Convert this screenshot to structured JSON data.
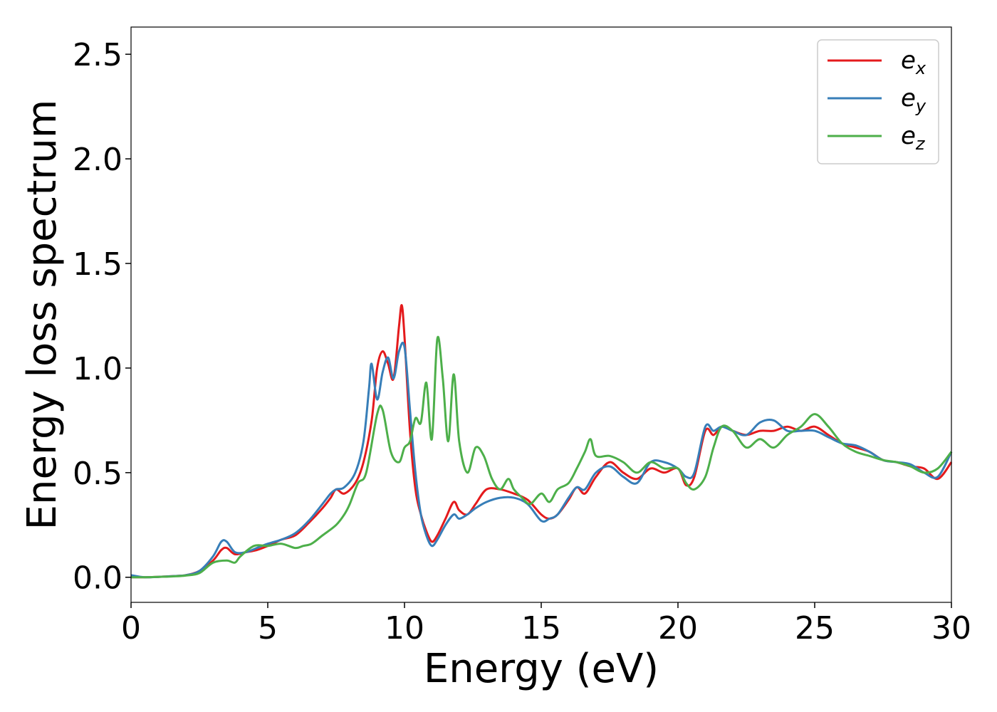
{
  "chart_data": {
    "type": "line",
    "xlabel": "Energy (eV)",
    "ylabel": "Energy loss spectrum",
    "xlim": [
      0,
      30
    ],
    "ylim": [
      -0.12,
      2.63
    ],
    "xticks": [
      0,
      5,
      10,
      15,
      20,
      25,
      30
    ],
    "xtick_labels": [
      "0",
      "5",
      "10",
      "15",
      "20",
      "25",
      "30"
    ],
    "yticks": [
      0.0,
      0.5,
      1.0,
      1.5,
      2.0,
      2.5
    ],
    "ytick_labels": [
      "0.0",
      "0.5",
      "1.0",
      "1.5",
      "2.0",
      "2.5"
    ],
    "grid": false,
    "legend_position": "top-right",
    "series": [
      {
        "name": "e_x",
        "label_base": "e",
        "label_sub": "x",
        "color": "#e41a1c",
        "x": [
          0,
          0.5,
          1,
          1.5,
          2,
          2.5,
          3,
          3.3,
          3.5,
          3.8,
          4.2,
          4.6,
          5,
          5.5,
          6,
          6.5,
          7,
          7.3,
          7.5,
          7.8,
          8.2,
          8.5,
          8.8,
          9,
          9.2,
          9.4,
          9.6,
          9.8,
          9.9,
          10,
          10.2,
          10.4,
          10.6,
          10.8,
          11,
          11.2,
          11.5,
          11.8,
          12,
          12.3,
          12.6,
          13,
          13.5,
          14,
          14.5,
          15,
          15.3,
          15.6,
          16,
          16.3,
          16.6,
          17,
          17.5,
          18,
          18.5,
          19,
          19.5,
          20,
          20.3,
          20.6,
          21,
          21.3,
          21.6,
          22,
          22.5,
          23,
          23.5,
          24,
          24.5,
          25,
          25.5,
          26,
          26.5,
          27,
          27.5,
          28,
          28.5,
          29,
          29.5,
          30
        ],
        "y": [
          0,
          0,
          0.002,
          0.005,
          0.01,
          0.03,
          0.08,
          0.13,
          0.14,
          0.11,
          0.12,
          0.13,
          0.15,
          0.18,
          0.2,
          0.26,
          0.33,
          0.38,
          0.42,
          0.4,
          0.45,
          0.55,
          0.75,
          1.0,
          1.08,
          1.02,
          0.95,
          1.2,
          1.3,
          1.15,
          0.7,
          0.42,
          0.3,
          0.22,
          0.17,
          0.2,
          0.28,
          0.36,
          0.32,
          0.3,
          0.35,
          0.42,
          0.42,
          0.4,
          0.37,
          0.3,
          0.28,
          0.3,
          0.37,
          0.43,
          0.4,
          0.48,
          0.55,
          0.5,
          0.47,
          0.52,
          0.5,
          0.52,
          0.44,
          0.48,
          0.7,
          0.68,
          0.72,
          0.7,
          0.68,
          0.7,
          0.7,
          0.72,
          0.7,
          0.72,
          0.68,
          0.64,
          0.62,
          0.6,
          0.56,
          0.55,
          0.53,
          0.52,
          0.47,
          0.55
        ]
      },
      {
        "name": "e_y",
        "label_base": "e",
        "label_sub": "y",
        "color": "#377eb8",
        "x": [
          0,
          0.5,
          1,
          1.5,
          2,
          2.5,
          3,
          3.3,
          3.5,
          3.8,
          4.2,
          4.6,
          5,
          5.5,
          6,
          6.5,
          7,
          7.3,
          7.5,
          7.8,
          8.2,
          8.5,
          8.7,
          8.8,
          9,
          9.2,
          9.4,
          9.6,
          9.8,
          10,
          10.2,
          10.4,
          10.6,
          10.8,
          11,
          11.2,
          11.5,
          11.8,
          12,
          12.3,
          12.6,
          13,
          13.5,
          14,
          14.5,
          15,
          15.3,
          15.6,
          16,
          16.3,
          16.6,
          17,
          17.5,
          18,
          18.5,
          19,
          19.5,
          20,
          20.3,
          20.6,
          21,
          21.3,
          21.6,
          22,
          22.5,
          23,
          23.5,
          24,
          24.5,
          25,
          25.5,
          26,
          26.5,
          27,
          27.5,
          28,
          28.5,
          29,
          29.5,
          30
        ],
        "y": [
          0.01,
          0,
          0.002,
          0.005,
          0.01,
          0.03,
          0.1,
          0.17,
          0.17,
          0.12,
          0.12,
          0.14,
          0.16,
          0.18,
          0.21,
          0.27,
          0.35,
          0.4,
          0.42,
          0.43,
          0.5,
          0.65,
          0.9,
          1.02,
          0.85,
          0.98,
          1.05,
          0.95,
          1.08,
          1.1,
          0.8,
          0.5,
          0.3,
          0.2,
          0.15,
          0.18,
          0.25,
          0.3,
          0.28,
          0.3,
          0.33,
          0.36,
          0.38,
          0.38,
          0.35,
          0.27,
          0.28,
          0.3,
          0.38,
          0.43,
          0.42,
          0.5,
          0.53,
          0.48,
          0.45,
          0.55,
          0.55,
          0.52,
          0.48,
          0.5,
          0.72,
          0.7,
          0.72,
          0.7,
          0.68,
          0.74,
          0.75,
          0.7,
          0.7,
          0.7,
          0.67,
          0.64,
          0.63,
          0.6,
          0.56,
          0.55,
          0.54,
          0.5,
          0.48,
          0.6
        ]
      },
      {
        "name": "e_z",
        "label_base": "e",
        "label_sub": "z",
        "color": "#4daf4a",
        "x": [
          0,
          0.5,
          1,
          1.5,
          2,
          2.5,
          3,
          3.5,
          3.8,
          4,
          4.5,
          5,
          5.5,
          6,
          6.3,
          6.6,
          7,
          7.5,
          7.8,
          8,
          8.3,
          8.6,
          9,
          9.2,
          9.5,
          9.8,
          10,
          10.2,
          10.4,
          10.6,
          10.8,
          11,
          11.2,
          11.4,
          11.6,
          11.8,
          12,
          12.3,
          12.6,
          12.9,
          13.2,
          13.5,
          13.8,
          14,
          14.3,
          14.6,
          15,
          15.3,
          15.6,
          16,
          16.3,
          16.6,
          16.8,
          17,
          17.5,
          18,
          18.5,
          19,
          19.5,
          20,
          20.3,
          20.6,
          21,
          21.3,
          21.6,
          22,
          22.5,
          23,
          23.5,
          24,
          24.5,
          25,
          25.5,
          26,
          26.5,
          27,
          27.5,
          28,
          28.5,
          29,
          29.5,
          30
        ],
        "y": [
          0,
          0,
          0.002,
          0.004,
          0.008,
          0.02,
          0.07,
          0.08,
          0.07,
          0.1,
          0.15,
          0.15,
          0.16,
          0.14,
          0.15,
          0.16,
          0.2,
          0.25,
          0.3,
          0.35,
          0.45,
          0.5,
          0.78,
          0.8,
          0.6,
          0.55,
          0.62,
          0.65,
          0.76,
          0.74,
          0.93,
          0.66,
          1.14,
          0.95,
          0.65,
          0.97,
          0.65,
          0.5,
          0.62,
          0.58,
          0.47,
          0.42,
          0.47,
          0.42,
          0.38,
          0.35,
          0.4,
          0.36,
          0.42,
          0.45,
          0.52,
          0.6,
          0.66,
          0.58,
          0.58,
          0.55,
          0.5,
          0.55,
          0.52,
          0.52,
          0.45,
          0.42,
          0.48,
          0.62,
          0.72,
          0.7,
          0.62,
          0.66,
          0.62,
          0.68,
          0.72,
          0.78,
          0.72,
          0.64,
          0.6,
          0.58,
          0.56,
          0.55,
          0.53,
          0.5,
          0.52,
          0.6
        ]
      }
    ]
  }
}
